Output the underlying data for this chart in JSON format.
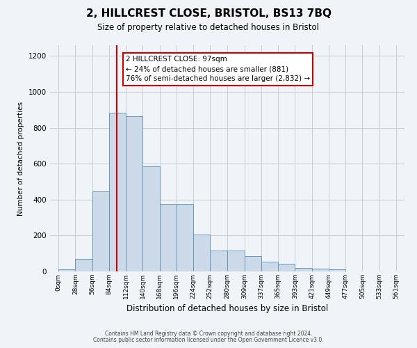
{
  "title": "2, HILLCREST CLOSE, BRISTOL, BS13 7BQ",
  "subtitle": "Size of property relative to detached houses in Bristol",
  "xlabel": "Distribution of detached houses by size in Bristol",
  "ylabel": "Number of detached properties",
  "bar_values": [
    10,
    70,
    445,
    885,
    865,
    585,
    375,
    375,
    205,
    115,
    115,
    85,
    55,
    42,
    20,
    15,
    12
  ],
  "bin_edges": [
    0,
    28,
    56,
    84,
    112,
    140,
    168,
    196,
    224,
    252,
    280,
    309,
    337,
    365,
    393,
    421,
    449,
    477
  ],
  "tick_labels": [
    "0sqm",
    "28sqm",
    "56sqm",
    "84sqm",
    "112sqm",
    "140sqm",
    "168sqm",
    "196sqm",
    "224sqm",
    "252sqm",
    "280sqm",
    "309sqm",
    "337sqm",
    "365sqm",
    "393sqm",
    "421sqm",
    "449sqm",
    "477sqm",
    "505sqm",
    "533sqm",
    "561sqm"
  ],
  "all_bin_edges": [
    0,
    28,
    56,
    84,
    112,
    140,
    168,
    196,
    224,
    252,
    280,
    309,
    337,
    365,
    393,
    421,
    449,
    477,
    505,
    533,
    561
  ],
  "bar_color": "#ccd9e8",
  "bar_edge_color": "#6699bb",
  "vline_x": 97,
  "vline_color": "#cc0000",
  "ylim": [
    0,
    1260
  ],
  "xlim": [
    -14,
    575
  ],
  "annotation_text": "2 HILLCREST CLOSE: 97sqm\n← 24% of detached houses are smaller (881)\n76% of semi-detached houses are larger (2,832) →",
  "footer1": "Contains HM Land Registry data © Crown copyright and database right 2024.",
  "footer2": "Contains public sector information licensed under the Open Government Licence v3.0.",
  "bg_color": "#f0f4f8",
  "grid_color": "#c5cdd8",
  "title_fontsize": 11,
  "subtitle_fontsize": 8.5,
  "xlabel_fontsize": 8.5,
  "ylabel_fontsize": 7.5,
  "ytick_fontsize": 7.5,
  "xtick_fontsize": 6.5,
  "footer_fontsize": 5.5,
  "annotation_fontsize": 7.5
}
